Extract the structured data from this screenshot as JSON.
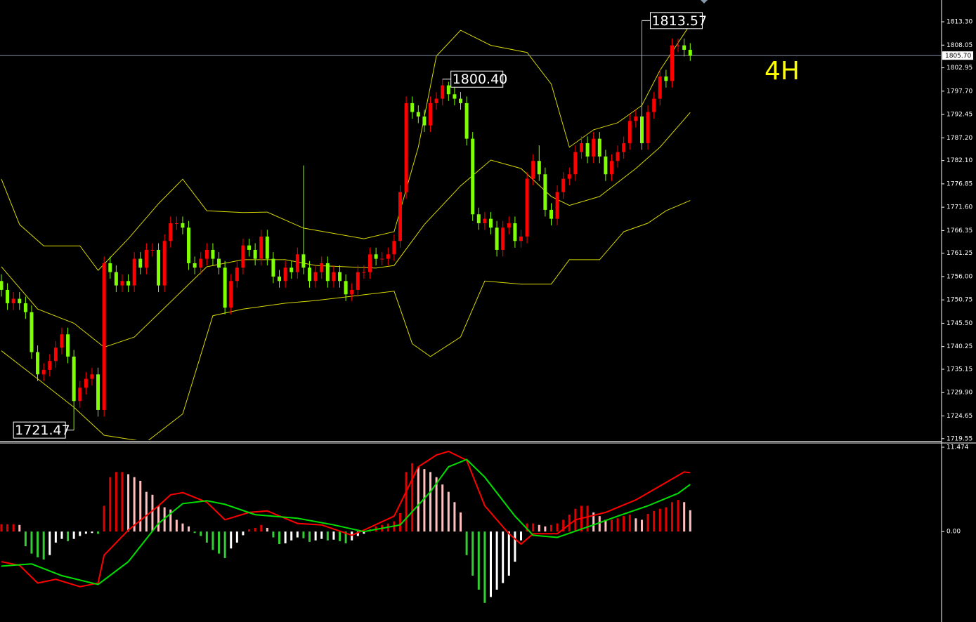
{
  "chart_data": [
    {
      "type": "candlestick",
      "timeframe_label": "4H",
      "xlim": [
        -0.23,
        155.6
      ],
      "ylim": [
        1719.2,
        1818.2
      ],
      "yticks": [
        {
          "value": 1813.3,
          "label": "1813.30"
        },
        {
          "value": 1808.05,
          "label": "1808.05"
        },
        {
          "value": 1802.95,
          "label": "1802.95"
        },
        {
          "value": 1797.7,
          "label": "1797.70"
        },
        {
          "value": 1792.45,
          "label": "1792.45"
        },
        {
          "value": 1787.2,
          "label": "1787.20"
        },
        {
          "value": 1782.1,
          "label": "1782.10"
        },
        {
          "value": 1776.85,
          "label": "1776.85"
        },
        {
          "value": 1771.6,
          "label": "1771.60"
        },
        {
          "value": 1766.35,
          "label": "1766.35"
        },
        {
          "value": 1761.25,
          "label": "1761.25"
        },
        {
          "value": 1756,
          "label": "1756.00"
        },
        {
          "value": 1750.75,
          "label": "1750.75"
        },
        {
          "value": 1745.5,
          "label": "1745.50"
        },
        {
          "value": 1740.25,
          "label": "1740.25"
        },
        {
          "value": 1735.15,
          "label": "1735.15"
        },
        {
          "value": 1729.9,
          "label": "1729.90"
        },
        {
          "value": 1724.65,
          "label": "1724.65"
        },
        {
          "value": 1719.55,
          "label": "1719.55"
        }
      ],
      "up_color": "#ff0000",
      "down_color": "#7fff00",
      "open": [
        1755,
        1753,
        1750,
        1751,
        1750,
        1748,
        1739,
        1734,
        1735,
        1737,
        1740,
        1743,
        1738,
        1728,
        1731,
        1733,
        1734,
        1726,
        1759,
        1757,
        1754,
        1755,
        1754,
        1760,
        1758,
        1762,
        1762,
        1754,
        1764,
        1768,
        1768,
        1767,
        1759,
        1758,
        1760,
        1762,
        1760,
        1758,
        1749,
        1755,
        1758,
        1763,
        1762,
        1760,
        1765,
        1760,
        1756,
        1755,
        1758,
        1757,
        1761,
        1758,
        1755,
        1757,
        1759,
        1755,
        1757,
        1755,
        1752,
        1753,
        1757,
        1757,
        1761,
        1760,
        1760,
        1761,
        1764,
        1775,
        1795,
        1793,
        1792,
        1790,
        1795,
        1796,
        1799,
        1797,
        1796,
        1795,
        1787,
        1770,
        1768,
        1769,
        1767,
        1762,
        1767,
        1768,
        1764,
        1765,
        1778,
        1782,
        1779,
        1771,
        1769,
        1775,
        1778,
        1779,
        1784,
        1786,
        1783,
        1787,
        1783,
        1779,
        1782,
        1784,
        1786,
        1791,
        1792,
        1786,
        1793,
        1796,
        1801,
        1800,
        1808,
        1808,
        1807
      ],
      "high": [
        1756.5,
        1754.5,
        1752.5,
        1752.5,
        1751.5,
        1749.5,
        1740.5,
        1736.5,
        1738.5,
        1741.5,
        1744.5,
        1744.5,
        1739.5,
        1732.5,
        1734.5,
        1735.5,
        1735.5,
        1760.5,
        1760.5,
        1758.5,
        1756.5,
        1756.5,
        1761.5,
        1761.5,
        1763.5,
        1763.5,
        1763.5,
        1765.5,
        1769.5,
        1769.5,
        1769.5,
        1768.5,
        1760.5,
        1761.5,
        1763.5,
        1763.5,
        1761.5,
        1759.5,
        1756.5,
        1759.5,
        1764.5,
        1764.5,
        1763.5,
        1766.5,
        1766.5,
        1761.5,
        1757.5,
        1759.5,
        1759.5,
        1762.5,
        1781,
        1759.5,
        1758.5,
        1760.5,
        1760.5,
        1758.5,
        1758.5,
        1756.5,
        1754.5,
        1758.5,
        1758.5,
        1762.5,
        1762.5,
        1761.5,
        1762.5,
        1765.5,
        1776.5,
        1796.5,
        1796.5,
        1794.5,
        1793.5,
        1796.5,
        1797.5,
        1800.4,
        1799.8,
        1798.5,
        1797.5,
        1796.5,
        1788.5,
        1771.5,
        1770.5,
        1770.5,
        1768.5,
        1768.5,
        1769.5,
        1769.5,
        1766.5,
        1779.5,
        1783.5,
        1785.5,
        1780.5,
        1772.5,
        1776.5,
        1779.5,
        1780.5,
        1785.5,
        1787.5,
        1787.5,
        1788.5,
        1788.5,
        1784.5,
        1783.5,
        1785.5,
        1787.5,
        1792.5,
        1793.5,
        1813.57,
        1794.5,
        1797.5,
        1802.5,
        1802.5,
        1809.5,
        1809.5,
        1809.5,
        1808.5
      ],
      "low": [
        1751.5,
        1748.5,
        1748.5,
        1748.5,
        1746.5,
        1737.5,
        1732.5,
        1732.5,
        1733.5,
        1735.5,
        1738.5,
        1736.5,
        1721.47,
        1726.5,
        1729.5,
        1731.5,
        1724.5,
        1724.5,
        1755.5,
        1752.5,
        1752.5,
        1752.5,
        1752.5,
        1756.5,
        1756.5,
        1760.5,
        1752.5,
        1752.5,
        1762.5,
        1766.5,
        1765.5,
        1757.5,
        1756.5,
        1756.5,
        1758.5,
        1758.5,
        1756.5,
        1747.5,
        1747.5,
        1753.5,
        1756.5,
        1760.5,
        1758.5,
        1758.5,
        1758.5,
        1754.5,
        1753.5,
        1753.5,
        1755.5,
        1755.5,
        1756.5,
        1753.5,
        1753.5,
        1755.5,
        1753.5,
        1753.5,
        1753.5,
        1750.5,
        1750.5,
        1751.5,
        1755.5,
        1755.5,
        1758.5,
        1758.5,
        1758.5,
        1759.5,
        1762.5,
        1773.5,
        1791.5,
        1790.5,
        1788.5,
        1788.5,
        1793.5,
        1794.5,
        1795.5,
        1794.5,
        1793.5,
        1785.5,
        1768.5,
        1766.5,
        1766.5,
        1765.5,
        1760.5,
        1760.5,
        1765.5,
        1762.5,
        1762.5,
        1763.5,
        1776.5,
        1777.5,
        1769.5,
        1767.5,
        1767.5,
        1773.5,
        1776.5,
        1777.5,
        1782.5,
        1781.5,
        1781.5,
        1781.5,
        1777.5,
        1777.5,
        1780.5,
        1782.5,
        1784.5,
        1789.5,
        1784.5,
        1784.5,
        1791.5,
        1794.5,
        1798.5,
        1798.5,
        1806.5,
        1805.5,
        1804.5
      ],
      "close": [
        1753,
        1750,
        1751,
        1750,
        1748,
        1739,
        1734,
        1735,
        1737,
        1740,
        1743,
        1738,
        1728,
        1731,
        1733,
        1734,
        1726,
        1759,
        1757,
        1754,
        1755,
        1754,
        1760,
        1758,
        1762,
        1762,
        1754,
        1764,
        1768,
        1768,
        1767,
        1759,
        1758,
        1760,
        1762,
        1760,
        1758,
        1749,
        1755,
        1758,
        1763,
        1762,
        1760,
        1765,
        1760,
        1756,
        1755,
        1758,
        1757,
        1761,
        1758,
        1755,
        1757,
        1759,
        1755,
        1757,
        1755,
        1752,
        1753,
        1757,
        1757,
        1761,
        1760,
        1760,
        1761,
        1764,
        1775,
        1795,
        1793,
        1792,
        1790,
        1795,
        1796,
        1799,
        1797,
        1796,
        1795,
        1787,
        1770,
        1768,
        1769,
        1767,
        1762,
        1767,
        1768,
        1764,
        1765,
        1778,
        1782,
        1779,
        1771,
        1769,
        1775,
        1778,
        1779,
        1784,
        1786,
        1783,
        1787,
        1783,
        1779,
        1782,
        1784,
        1786,
        1791,
        1792,
        1786,
        1793,
        1796,
        1801,
        1800,
        1808,
        1808,
        1807,
        1805.7
      ],
      "bands": [
        {
          "color": "#d8d800",
          "x": [
            0,
            3,
            7,
            13,
            16,
            21,
            26,
            30,
            34,
            40,
            44,
            50,
            60,
            65,
            69,
            72,
            76,
            81,
            87,
            91,
            94,
            98,
            102,
            106,
            109,
            114
          ],
          "values": [
            1777.9,
            1767.7,
            1762.9,
            1762.9,
            1757.4,
            1764.5,
            1772.4,
            1777.9,
            1770.8,
            1770.4,
            1770.5,
            1766.9,
            1764.5,
            1766.1,
            1785.1,
            1805.6,
            1811.4,
            1808.0,
            1806.4,
            1799.3,
            1785.1,
            1789.0,
            1790.6,
            1794.5,
            1802.4,
            1812.7
          ]
        },
        {
          "color": "#d8d800",
          "x": [
            0,
            6,
            12,
            17,
            22,
            28,
            34,
            40,
            47,
            52,
            62,
            65,
            70,
            76,
            81,
            86,
            91,
            94,
            99,
            105,
            109,
            114
          ],
          "values": [
            1758.2,
            1748.7,
            1745.5,
            1740.1,
            1742.4,
            1750.3,
            1758.2,
            1759.8,
            1759.8,
            1758.5,
            1757.9,
            1758.5,
            1767.7,
            1776.4,
            1782.2,
            1780.3,
            1774.0,
            1772.0,
            1774.0,
            1780.3,
            1785.1,
            1792.9
          ]
        },
        {
          "color": "#d8d800",
          "x": [
            0,
            6,
            12,
            17,
            24,
            30,
            35,
            40,
            47,
            52,
            60,
            65,
            68,
            71,
            76,
            80,
            86,
            91,
            94,
            99,
            103,
            107,
            110,
            114
          ],
          "values": [
            1739.3,
            1733.0,
            1726.6,
            1720.3,
            1718.8,
            1725.1,
            1747.2,
            1748.7,
            1750.0,
            1750.6,
            1751.9,
            1752.7,
            1740.9,
            1738.0,
            1742.4,
            1755.0,
            1754.3,
            1754.3,
            1759.8,
            1759.8,
            1766.1,
            1768.0,
            1770.8,
            1773.1
          ]
        }
      ],
      "current_price": {
        "value": 1805.7,
        "label": "1805.70"
      },
      "price_labels": [
        {
          "value": 1813.57,
          "label": "1813.57"
        },
        {
          "value": 1800.4,
          "label": "1800.40"
        },
        {
          "value": 1721.47,
          "label": "1721.47"
        }
      ]
    },
    {
      "type": "macd",
      "xlim": [
        -0.23,
        155.6
      ],
      "ylim": [
        -12.3,
        11.95
      ],
      "yticks": [
        11.474,
        {
          "value": 0,
          "label": "0.00"
        }
      ],
      "histogram": [
        1.0,
        1.0,
        1.0,
        0.9,
        -2.0,
        -3.0,
        -3.5,
        -3.8,
        -3.2,
        -1.5,
        -1.0,
        -1.3,
        -1.0,
        -0.6,
        -0.3,
        -0.2,
        -0.3,
        3.5,
        7.4,
        8.1,
        8.1,
        7.8,
        7.4,
        6.9,
        5.4,
        5.0,
        3.5,
        3.3,
        3.0,
        1.6,
        1.1,
        0.7,
        -0.2,
        -0.6,
        -1.5,
        -2.5,
        -3.0,
        -3.6,
        -2.3,
        -1.5,
        -0.5,
        0.3,
        0.5,
        0.9,
        0.5,
        -0.8,
        -1.7,
        -1.6,
        -1.2,
        -0.8,
        -0.9,
        -1.4,
        -1.2,
        -1.0,
        -1.2,
        -1.1,
        -1.3,
        -1.6,
        -1.2,
        -0.6,
        -0.3,
        0.3,
        0.7,
        0.9,
        1.1,
        1.4,
        2.5,
        8.1,
        9.3,
        8.8,
        8.5,
        8.1,
        7.4,
        6.4,
        5.4,
        4.0,
        2.6,
        -3.2,
        -6.0,
        -7.9,
        -9.7,
        -8.9,
        -7.9,
        -7.0,
        -6.0,
        -4.1,
        -1.2,
        1.1,
        1.1,
        0.9,
        0.7,
        0.9,
        1.1,
        1.6,
        2.3,
        3.1,
        3.5,
        3.5,
        2.6,
        2.1,
        1.6,
        1.6,
        1.8,
        2.1,
        2.3,
        1.8,
        1.6,
        2.4,
        2.8,
        3.1,
        3.3,
        4.0,
        4.3,
        4.0,
        2.9
      ],
      "histogram_colors": {
        "rising_positive": "#e00000",
        "falling_positive": "#ffc0c0",
        "falling_negative": "#32cd32",
        "rising_negative": "#ffffff"
      },
      "lines": [
        {
          "color": "#ff0000",
          "x": [
            0,
            3,
            6,
            9,
            13,
            16,
            17,
            21,
            26,
            28,
            30,
            34,
            37,
            41,
            44,
            49,
            53,
            58,
            60,
            65,
            69,
            72,
            74,
            77,
            80,
            84,
            86,
            88,
            92,
            95,
            100,
            105,
            109,
            113,
            114
          ],
          "values": [
            -4.1,
            -4.6,
            -7.0,
            -6.5,
            -7.5,
            -7.0,
            -3.2,
            0.2,
            3.5,
            5.0,
            5.3,
            4.0,
            1.6,
            2.6,
            2.8,
            1.1,
            0.9,
            -0.5,
            0.2,
            2.1,
            8.8,
            10.4,
            10.9,
            9.7,
            3.5,
            -0.3,
            -1.7,
            -0.3,
            -0.3,
            1.6,
            2.6,
            4.3,
            6.2,
            8.1,
            8.0
          ]
        },
        {
          "color": "#00e000",
          "x": [
            0,
            5,
            10,
            16,
            21,
            26,
            30,
            34,
            37,
            42,
            49,
            55,
            60,
            66,
            71,
            74,
            77,
            80,
            85,
            88,
            92,
            98,
            102,
            107,
            112,
            114
          ],
          "values": [
            -4.7,
            -4.4,
            -6.0,
            -7.2,
            -4.1,
            1.1,
            3.8,
            4.2,
            3.7,
            2.3,
            1.8,
            0.9,
            0,
            0.9,
            5.4,
            8.8,
            9.8,
            7.4,
            2.1,
            -0.5,
            -0.8,
            0.9,
            2.1,
            3.5,
            5.2,
            6.4
          ]
        }
      ]
    }
  ]
}
